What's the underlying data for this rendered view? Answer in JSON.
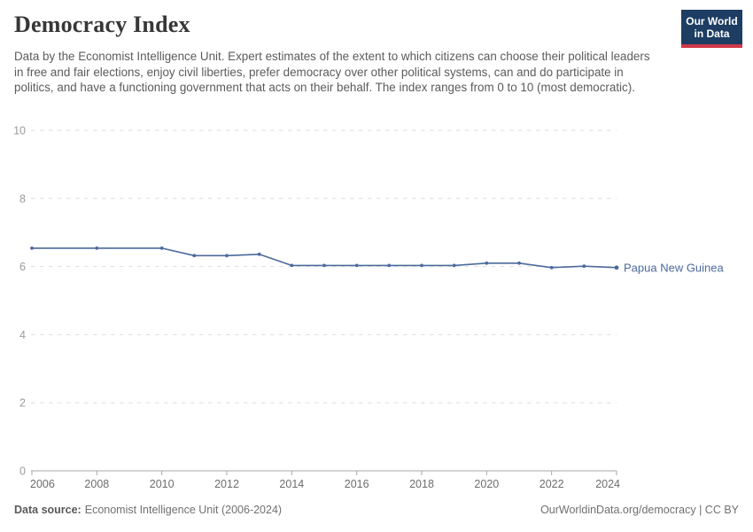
{
  "header": {
    "title": "Democracy Index",
    "subtitle": "Data by the Economist Intelligence Unit. Expert estimates of the extent to which citizens can choose their political leaders in free and fair elections, enjoy civil liberties, prefer democracy over other political systems, can and do participate in politics, and have a functioning government that acts on their behalf. The index ranges from 0 to 10 (most democratic).",
    "logo": {
      "line1": "Our World",
      "line2": "in Data",
      "bg_color": "#1d3d63",
      "accent_color": "#d0394a",
      "text_color": "#ffffff"
    }
  },
  "chart_data": {
    "type": "line",
    "title": "Democracy Index",
    "xlabel": "",
    "ylabel": "",
    "xlim": [
      2006,
      2024
    ],
    "ylim": [
      0,
      10
    ],
    "x_ticks": [
      2006,
      2008,
      2010,
      2012,
      2014,
      2016,
      2018,
      2020,
      2022,
      2024
    ],
    "y_ticks": [
      0,
      2,
      4,
      6,
      8,
      10
    ],
    "grid": "horizontal-dashed",
    "legend_position": "line-end-label",
    "colors": {
      "gridline": "#dedede",
      "axis": "#a7a7a7",
      "y_tick_label": "#9b9b9b",
      "x_tick_label": "#6d6d6d"
    },
    "series": [
      {
        "name": "Papua New Guinea",
        "color": "#4C6A9C",
        "x": [
          2006,
          2008,
          2010,
          2011,
          2012,
          2013,
          2014,
          2015,
          2016,
          2017,
          2018,
          2019,
          2020,
          2021,
          2022,
          2023,
          2024
        ],
        "values": [
          6.54,
          6.54,
          6.54,
          6.32,
          6.32,
          6.36,
          6.03,
          6.03,
          6.03,
          6.03,
          6.03,
          6.03,
          6.1,
          6.1,
          5.97,
          6.01,
          5.97
        ]
      }
    ]
  },
  "footer": {
    "source_label": "Data source:",
    "source_value": "Economist Intelligence Unit (2006-2024)",
    "credit": "OurWorldinData.org/democracy | CC BY"
  }
}
